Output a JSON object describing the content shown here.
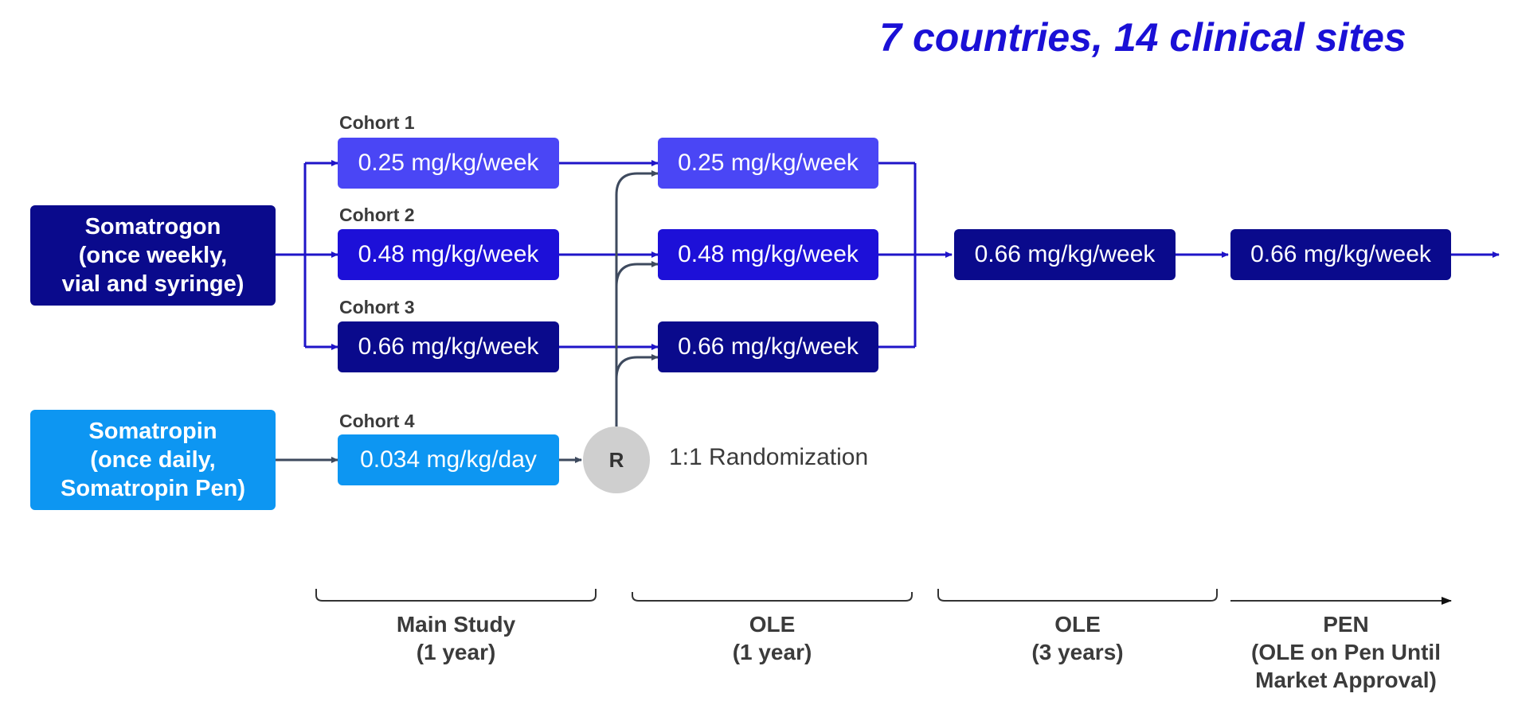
{
  "title": "7 countries, 14 clinical sites",
  "colors": {
    "somatrogon_arm": "#0a0a8c",
    "somatropin_arm": "#0d96f2",
    "dose_0_25": "#4a46f5",
    "dose_0_48": "#1d10d8",
    "dose_0_66": "#0a0a8c",
    "dose_somatropin": "#0d96f2",
    "line_blue": "#1f14c8",
    "line_grey": "#3e4a5e"
  },
  "arms": {
    "somatrogon": "Somatrogon\n(once weekly,\nvial and syringe)",
    "somatropin": "Somatropin\n(once daily,\nSomatropin Pen)"
  },
  "cohorts": [
    {
      "label": "Cohort 1",
      "dose": "0.25 mg/kg/week"
    },
    {
      "label": "Cohort 2",
      "dose": "0.48 mg/kg/week"
    },
    {
      "label": "Cohort 3",
      "dose": "0.66 mg/kg/week"
    },
    {
      "label": "Cohort 4",
      "dose": "0.034 mg/kg/day"
    }
  ],
  "ole1": [
    {
      "dose": "0.25 mg/kg/week"
    },
    {
      "dose": "0.48 mg/kg/week"
    },
    {
      "dose": "0.66 mg/kg/week"
    }
  ],
  "ole3": {
    "dose": "0.66 mg/kg/week"
  },
  "pen": {
    "dose": "0.66 mg/kg/week"
  },
  "randomization": {
    "symbol": "R",
    "label": "1:1 Randomization"
  },
  "phases": [
    {
      "label": "Main Study\n(1 year)"
    },
    {
      "label": "OLE\n(1 year)"
    },
    {
      "label": "OLE\n(3 years)"
    },
    {
      "label": "PEN\n(OLE on Pen Until\nMarket Approval)"
    }
  ]
}
